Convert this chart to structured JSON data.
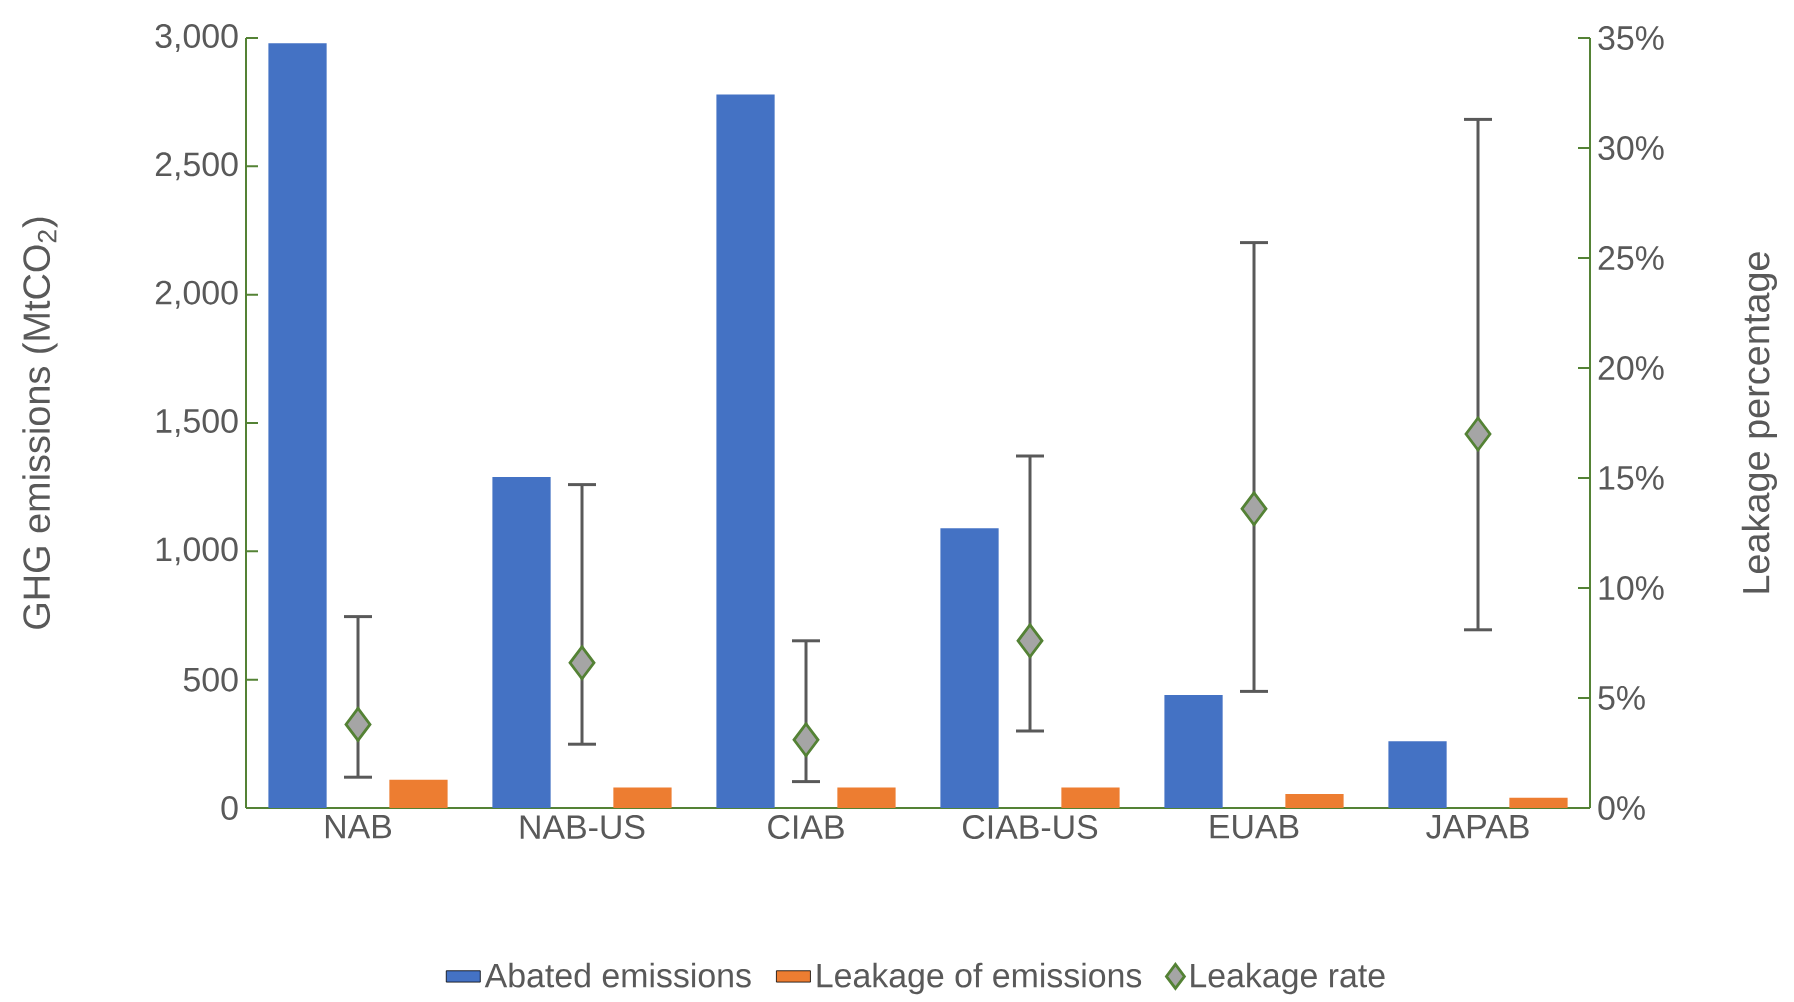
{
  "chart_data": {
    "type": "bar",
    "ylabel": "GHG emissions (MtCO$_{2}$)",
    "y2label": "Leakage percentage",
    "categories": [
      "NAB",
      "NAB-US",
      "CIAB",
      "CIAB-US",
      "EUAB",
      "JAPAB"
    ],
    "series": [
      {
        "name": "Abated emissions",
        "color": "#4472c4",
        "values": [
          2980,
          1290,
          2780,
          1090,
          440,
          260
        ]
      },
      {
        "name": "Leakage of emissions",
        "color": "#ed7d31",
        "values": [
          110,
          80,
          80,
          80,
          55,
          40
        ]
      },
      {
        "name": "Leakage rate",
        "type": "scatter",
        "axis": "y2",
        "color": "#a5a5a5",
        "marker": "diamond",
        "values": [
          3.8,
          6.6,
          3.1,
          7.6,
          13.6,
          17.0
        ],
        "errors": [
          [
            1.4,
            8.7
          ],
          [
            2.9,
            14.7
          ],
          [
            1.2,
            7.6
          ],
          [
            3.5,
            16.0
          ],
          [
            5.3,
            25.7
          ],
          [
            8.1,
            31.3
          ]
        ]
      }
    ],
    "ylim": [
      0,
      3000
    ],
    "yticks": [
      0,
      {
        "value": 500,
        "label": "500"
      },
      {
        "value": 1000,
        "label": "1,000"
      },
      {
        "value": 1500,
        "label": "1,500"
      },
      {
        "value": 2000,
        "label": "2,000"
      },
      {
        "value": 2500,
        "label": "2,500"
      },
      {
        "value": 3000,
        "label": "3,000"
      }
    ],
    "y2lim": [
      0,
      35
    ],
    "y2ticks": [
      {
        "value": 0,
        "label": "0%"
      },
      {
        "value": 5,
        "label": "5%"
      },
      {
        "value": 10,
        "label": "10%"
      },
      {
        "value": 15,
        "label": "15%"
      },
      {
        "value": 20,
        "label": "20%"
      },
      {
        "value": 25,
        "label": "25%"
      },
      {
        "value": 30,
        "label": "30%"
      },
      {
        "value": 35,
        "label": "35%"
      }
    ],
    "grid": false,
    "legend": "bottom"
  }
}
